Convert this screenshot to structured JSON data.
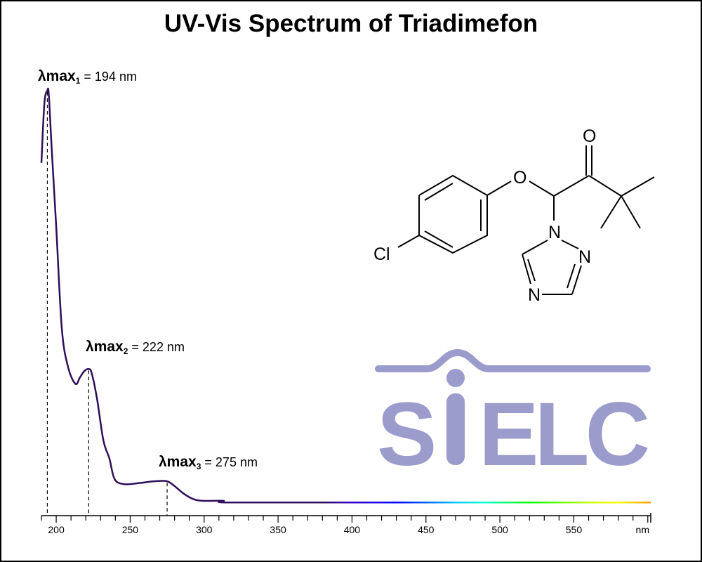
{
  "chart_data": {
    "type": "line",
    "title": "UV-Vis Spectrum of Triadimefon",
    "xlabel": "nm",
    "ylabel": "",
    "xlim": [
      190,
      602
    ],
    "ylim": [
      0,
      1.0
    ],
    "grid": false,
    "x_ticks": [
      200,
      250,
      300,
      350,
      400,
      450,
      500,
      550
    ],
    "x_unit_label": "nm",
    "y_units": "relative absorbance (no axis printed)",
    "series": [
      {
        "x": [
          190,
          192,
          194,
          195,
          197,
          200,
          203.8,
          208,
          213,
          216,
          219,
          222,
          224,
          227.6,
          231.9,
          236,
          239.5,
          246,
          257,
          266.7,
          274.8,
          279.5,
          285.7,
          292,
          298.6,
          313,
          315,
          385,
          602
        ],
        "y": [
          0.83,
          0.97,
          1.0,
          0.99,
          0.86,
          0.68,
          0.44,
          0.35,
          0.31,
          0.325,
          0.34,
          0.345,
          0.335,
          0.275,
          0.177,
          0.134,
          0.086,
          0.074,
          0.077,
          0.081,
          0.081,
          0.071,
          0.053,
          0.04,
          0.035,
          0.035,
          0.031,
          0.031,
          0.031
        ]
      }
    ],
    "annotations": [
      {
        "prefix": "λmax",
        "sub": "1",
        "text": " = 194 nm",
        "x": 194
      },
      {
        "prefix": "λmax",
        "sub": "2",
        "text": " = 222 nm",
        "x": 222
      },
      {
        "prefix": "λmax",
        "sub": "3",
        "text": " = 275 nm",
        "x": 275
      }
    ],
    "colors": {
      "curve_uv": "#2e0f5a",
      "axis": "#000000"
    }
  },
  "structure": {
    "atoms": {
      "cl": "Cl",
      "o_ether": "O",
      "o_ketone": "O",
      "n1": "N",
      "n2": "N",
      "n4": "N"
    }
  },
  "logo": {
    "text": "SIELC",
    "color": "#9b9bcc"
  }
}
